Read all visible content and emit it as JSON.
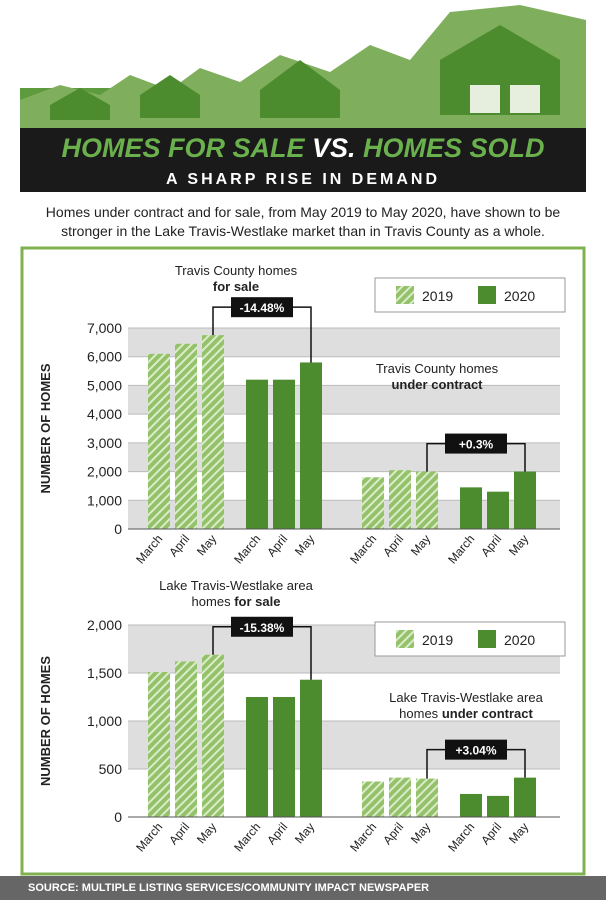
{
  "header": {
    "title_parts": [
      "HOMES FOR SALE",
      "VS.",
      "HOMES SOLD"
    ],
    "subtitle": "A SHARP RISE IN DEMAND",
    "intro": "Homes under contract and for sale, from May 2019 to May 2020, have shown to be stronger in the Lake Travis-Westlake market than in Travis County as a whole.",
    "source": "SOURCE: MULTIPLE LISTING SERVICES/COMMUNITY IMPACT NEWSPAPER"
  },
  "chart_data": [
    {
      "type": "bar",
      "y_label": "NUMBER OF HOMES",
      "grid": "bands",
      "categories": [
        "March",
        "April",
        "May",
        "March",
        "April",
        "May",
        "March",
        "April",
        "May",
        "March",
        "April",
        "May"
      ],
      "series": [
        {
          "name": "2019",
          "color": "#93c26a",
          "hatch": true,
          "values": [
            6100,
            6450,
            6750,
            null,
            null,
            null,
            1800,
            2050,
            2000,
            null,
            null,
            null
          ]
        },
        {
          "name": "2020",
          "color": "#4d8c2e",
          "hatch": false,
          "values": [
            null,
            null,
            null,
            5200,
            5200,
            5800,
            null,
            null,
            null,
            1450,
            1300,
            2000
          ]
        }
      ],
      "ylim": [
        0,
        7000
      ],
      "yticks": [
        0,
        {
          "value": 1000,
          "label": "1,000"
        },
        {
          "value": 2000,
          "label": "2,000"
        },
        {
          "value": 3000,
          "label": "3,000"
        },
        {
          "value": 4000,
          "label": "4,000"
        },
        {
          "value": 5000,
          "label": "5,000"
        },
        {
          "value": 6000,
          "label": "6,000"
        },
        {
          "value": 7000,
          "label": "7,000"
        }
      ],
      "panel_titles": [
        {
          "line1": "Travis County homes",
          "line2": "for sale"
        },
        {
          "line1": "Travis County homes",
          "line2": "under contract"
        }
      ],
      "changes": [
        "-14.48%",
        "+0.3%"
      ]
    },
    {
      "type": "bar",
      "y_label": "NUMBER OF HOMES",
      "grid": "bands",
      "categories": [
        "March",
        "April",
        "May",
        "March",
        "April",
        "May",
        "March",
        "April",
        "May",
        "March",
        "April",
        "May"
      ],
      "series": [
        {
          "name": "2019",
          "color": "#93c26a",
          "hatch": true,
          "values": [
            1510,
            1620,
            1690,
            null,
            null,
            null,
            370,
            410,
            400,
            null,
            null,
            null
          ]
        },
        {
          "name": "2020",
          "color": "#4d8c2e",
          "hatch": false,
          "values": [
            null,
            null,
            null,
            1250,
            1250,
            1430,
            null,
            null,
            null,
            240,
            220,
            410
          ]
        }
      ],
      "ylim": [
        0,
        2000
      ],
      "yticks": [
        0,
        500,
        {
          "value": 1000,
          "label": "1,000"
        },
        {
          "value": 1500,
          "label": "1,500"
        },
        {
          "value": 2000,
          "label": "2,000"
        }
      ],
      "panel_titles": [
        {
          "line1": "Lake Travis-Westlake area",
          "line2_prefix": "homes",
          "line2": "for sale"
        },
        {
          "line1": "Lake Travis-Westlake area",
          "line2_prefix": "homes",
          "line2": "under contract"
        }
      ],
      "changes": [
        "-15.38%",
        "+3.04%"
      ]
    }
  ]
}
